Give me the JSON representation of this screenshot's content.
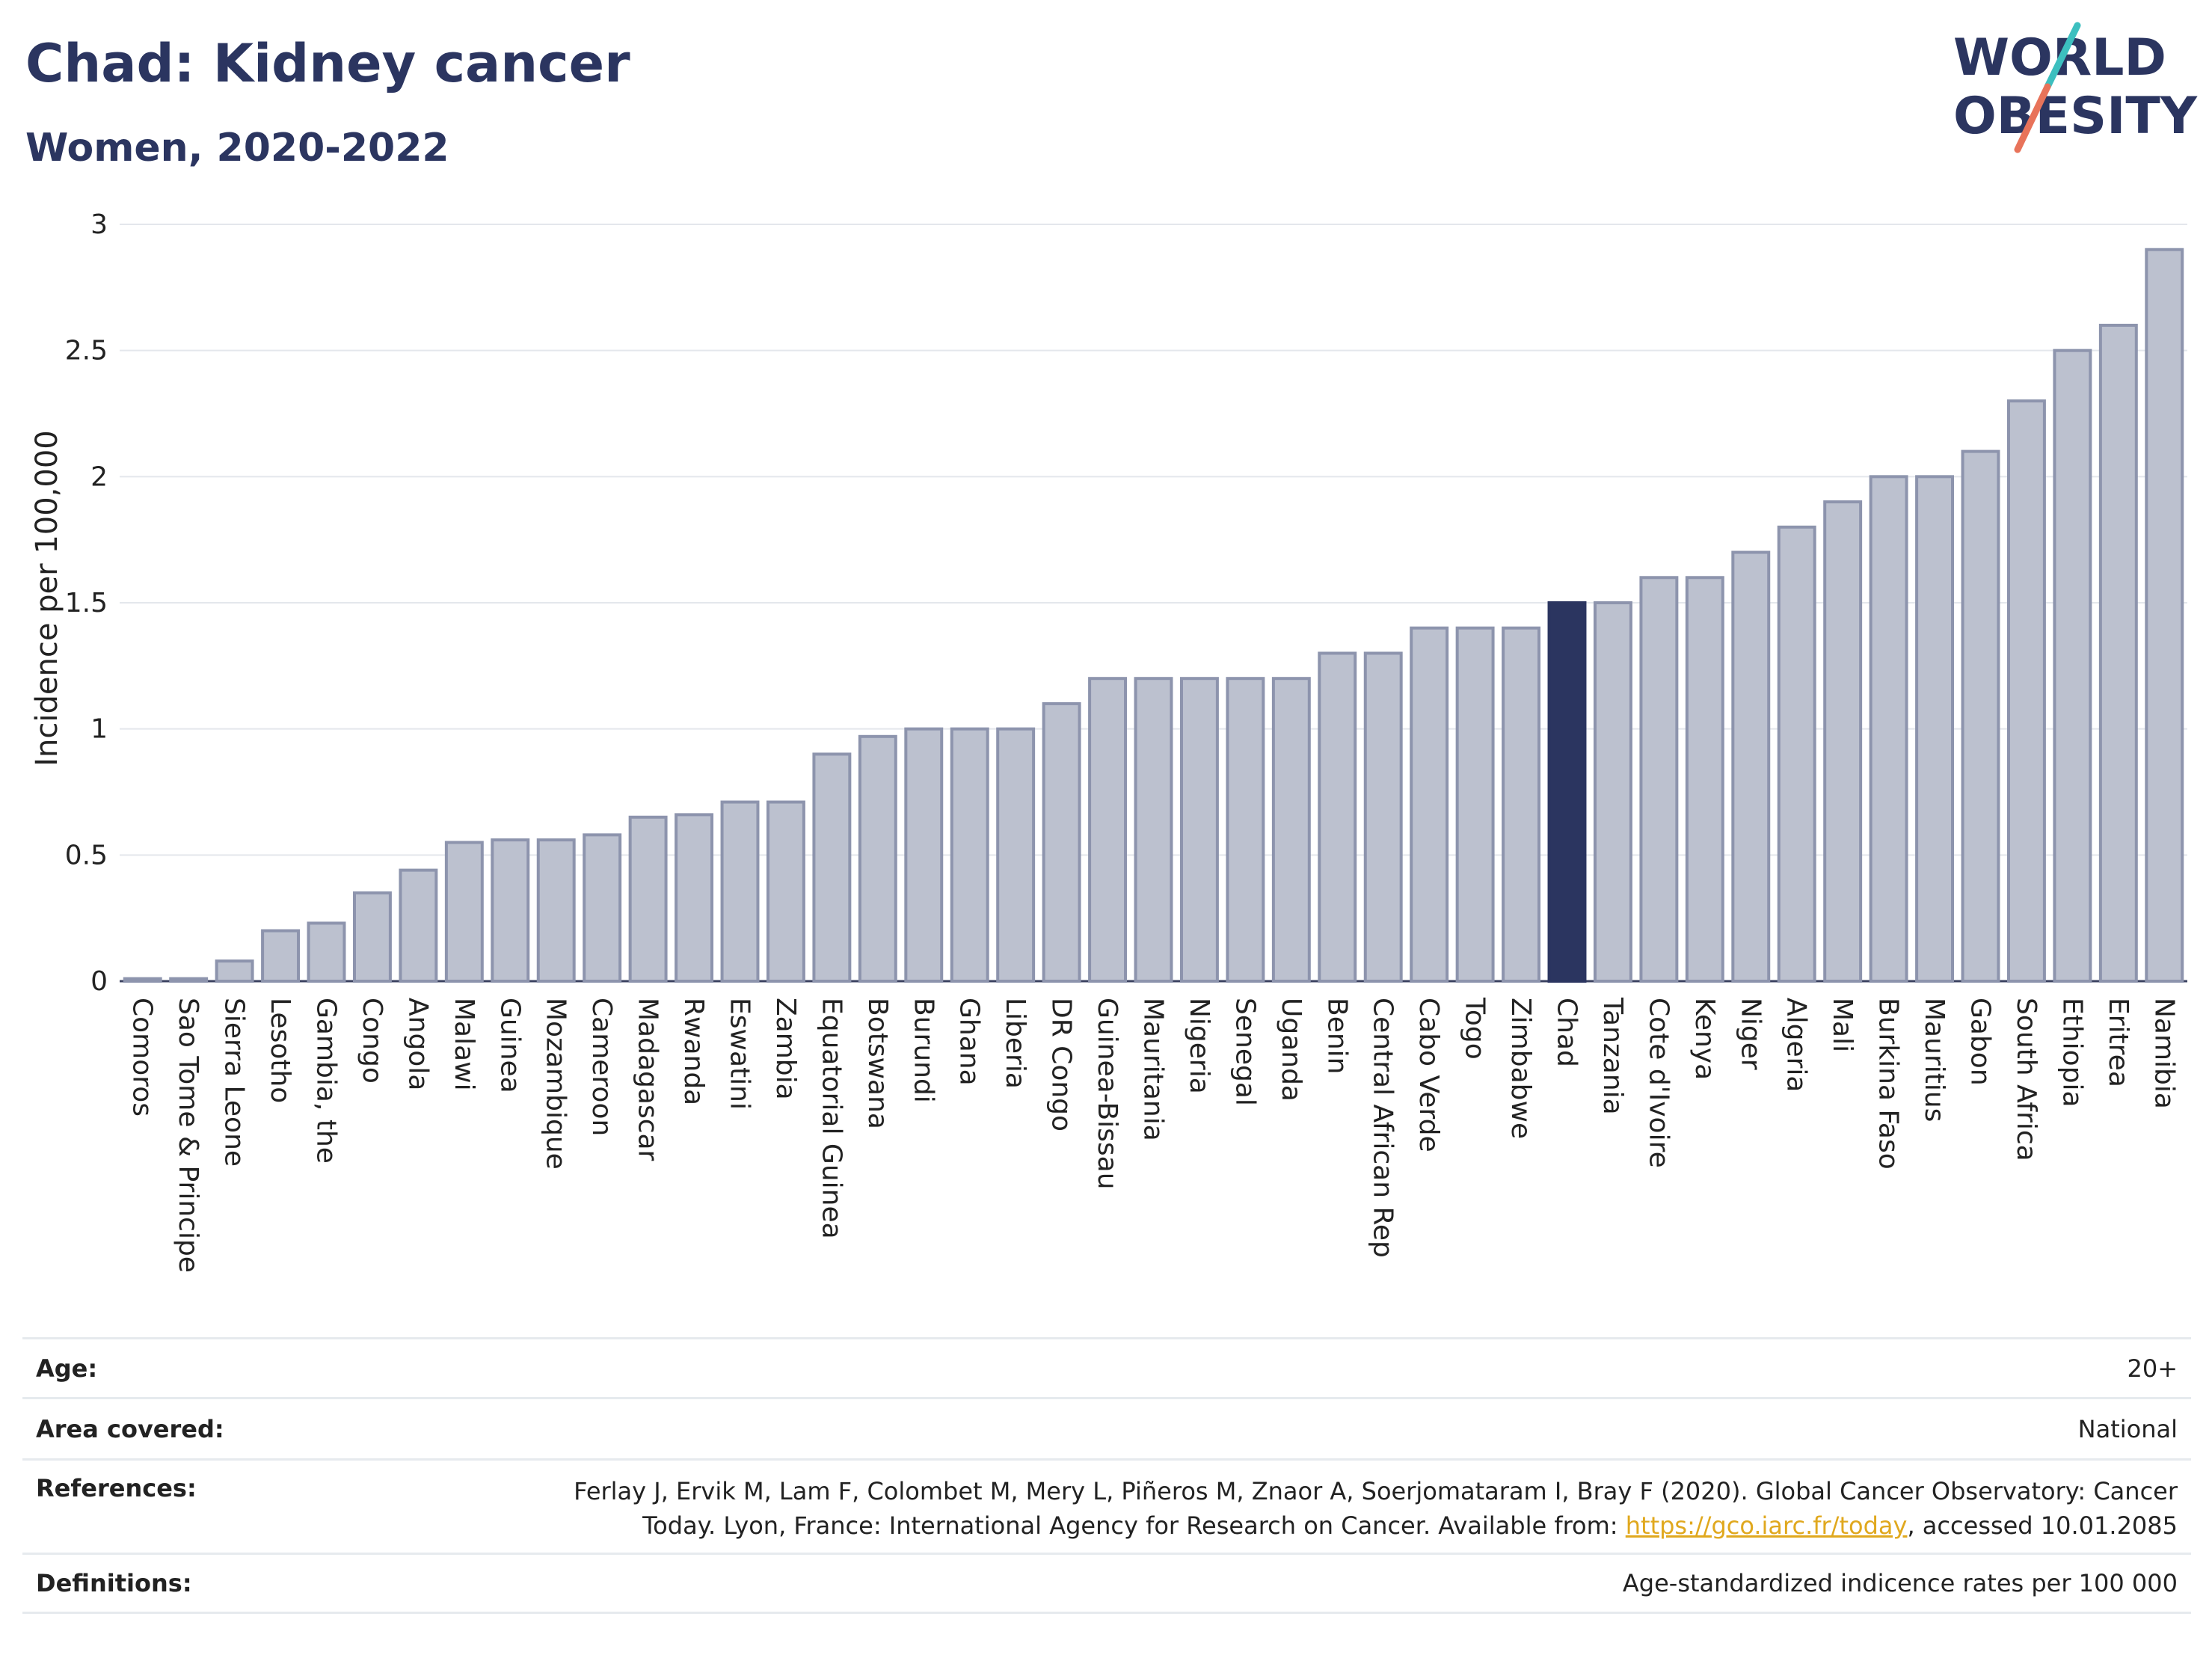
{
  "header": {
    "title": "Chad: Kidney cancer",
    "subtitle": "Women, 2020-2022"
  },
  "logo": {
    "line1": "WORLD",
    "line2": "OBESITY",
    "colors": {
      "text": "#2b3560",
      "slash_top": "#3cbfbf",
      "slash_bottom": "#e8735a"
    }
  },
  "chart_data": {
    "type": "bar",
    "ylabel": "Incidence per 100,000",
    "xlabel": "",
    "ylim": [
      0,
      3
    ],
    "yticks": [
      "0",
      "0.5",
      "1",
      "1.5",
      "2",
      "2.5",
      "3"
    ],
    "grid": true,
    "highlight": "Chad",
    "colors": {
      "bar": "#bcc1cf",
      "bar_edge": "#8d94ad",
      "highlight": "#2b3560"
    },
    "categories": [
      "Comoros",
      "Sao Tome & Principe",
      "Sierra Leone",
      "Lesotho",
      "Gambia, the",
      "Congo",
      "Angola",
      "Malawi",
      "Guinea",
      "Mozambique",
      "Cameroon",
      "Madagascar",
      "Rwanda",
      "Eswatini",
      "Zambia",
      "Equatorial Guinea",
      "Botswana",
      "Burundi",
      "Ghana",
      "Liberia",
      "DR Congo",
      "Guinea-Bissau",
      "Mauritania",
      "Nigeria",
      "Senegal",
      "Uganda",
      "Benin",
      "Central African Rep",
      "Cabo Verde",
      "Togo",
      "Zimbabwe",
      "Chad",
      "Tanzania",
      "Cote d'Ivoire",
      "Kenya",
      "Niger",
      "Algeria",
      "Mali",
      "Burkina Faso",
      "Mauritius",
      "Gabon",
      "South Africa",
      "Ethiopia",
      "Eritrea",
      "Namibia"
    ],
    "values": [
      0.01,
      0.01,
      0.08,
      0.2,
      0.23,
      0.35,
      0.44,
      0.55,
      0.56,
      0.56,
      0.58,
      0.65,
      0.66,
      0.71,
      0.71,
      0.9,
      0.97,
      1.0,
      1.0,
      1.0,
      1.1,
      1.2,
      1.2,
      1.2,
      1.2,
      1.2,
      1.3,
      1.3,
      1.4,
      1.4,
      1.4,
      1.5,
      1.5,
      1.6,
      1.6,
      1.7,
      1.8,
      1.9,
      2.0,
      2.0,
      2.1,
      2.3,
      2.5,
      2.6,
      2.9
    ]
  },
  "meta": {
    "age_label": "Age:",
    "age_value": "20+",
    "area_label": "Area covered:",
    "area_value": "National",
    "references_label": "References:",
    "references_line1": "Ferlay J, Ervik M, Lam F, Colombet M, Mery L, Piñeros M, Znaor A, Soerjomataram I, Bray F (2020). Global Cancer Observatory: Cancer",
    "references_line2_pre": "Today. Lyon, France: International Agency for Research on Cancer. Available from: ",
    "references_link": "https://gco.iarc.fr/today",
    "references_line2_post": ", accessed 10.01.2085",
    "definitions_label": "Definitions:",
    "definitions_value": "Age-standardized indicence rates per 100 000"
  }
}
